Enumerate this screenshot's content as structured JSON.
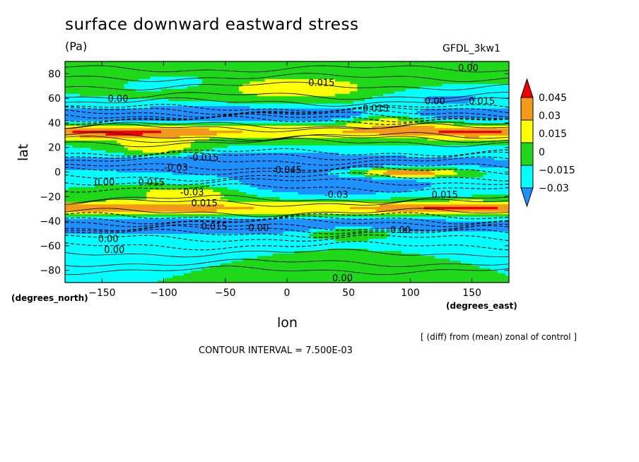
{
  "chart_data": {
    "type": "heatmap",
    "title": "surface downward eastward stress",
    "units": "(Pa)",
    "dataset": "GFDL_3kw1",
    "xlabel": "lon",
    "ylabel": "lat",
    "x_units": "(degrees_east)",
    "y_units": "(degrees_north)",
    "xlim": [
      -180,
      180
    ],
    "ylim": [
      -90,
      90
    ],
    "x_ticks": [
      -150,
      -100,
      -50,
      0,
      50,
      100,
      150
    ],
    "y_ticks": [
      -80,
      -60,
      -40,
      -20,
      0,
      20,
      40,
      60,
      80
    ],
    "note": "[ (diff) from (mean) zonal of control ]",
    "contour_interval": "CONTOUR INTERVAL = 7.500E-03",
    "colorbar": {
      "levels": [
        "0.045",
        "0.03",
        "0.015",
        "0",
        "−0.015",
        "−0.03"
      ],
      "colors": [
        "#ee0000",
        "#f39a1c",
        "#ffff00",
        "#20d81a",
        "#00ffff",
        "#1e90ff"
      ]
    },
    "contour_labels": [
      {
        "text": "0.00",
        "lon": 147,
        "lat": 85
      },
      {
        "text": "0.015",
        "lon": 28,
        "lat": 73
      },
      {
        "text": "0.00",
        "lon": -137,
        "lat": 60
      },
      {
        "text": "0.015",
        "lon": 72,
        "lat": 52
      },
      {
        "text": "0.00",
        "lon": 120,
        "lat": 58
      },
      {
        "text": "0.015",
        "lon": 158,
        "lat": 58
      },
      {
        "text": "0.015",
        "lon": -66,
        "lat": 12
      },
      {
        "text": "-0.03",
        "lon": -90,
        "lat": 4
      },
      {
        "text": "-0.045",
        "lon": 0,
        "lat": 2
      },
      {
        "text": "0.00",
        "lon": -148,
        "lat": -8
      },
      {
        "text": "0.015",
        "lon": -110,
        "lat": -8
      },
      {
        "text": "-0.03",
        "lon": -77,
        "lat": -16
      },
      {
        "text": "0.015",
        "lon": -67,
        "lat": -25
      },
      {
        "text": "-0.03",
        "lon": 40,
        "lat": -18
      },
      {
        "text": "0.015",
        "lon": 128,
        "lat": -18
      },
      {
        "text": "0.00",
        "lon": -145,
        "lat": -54
      },
      {
        "text": "0.00",
        "lon": -140,
        "lat": -63
      },
      {
        "text": "0.00",
        "lon": -23,
        "lat": -45
      },
      {
        "text": "0.015",
        "lon": -59,
        "lat": -44
      },
      {
        "text": "0.00",
        "lon": 92,
        "lat": -47
      },
      {
        "text": "0.00",
        "lon": 45,
        "lat": -86
      }
    ]
  }
}
